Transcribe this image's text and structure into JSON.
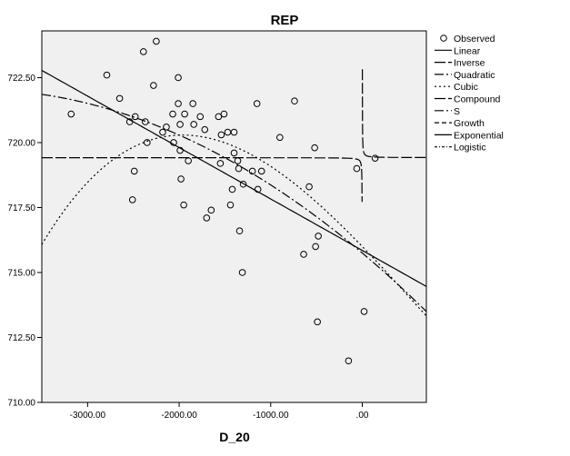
{
  "chart_data": {
    "type": "scatter",
    "title": "REP",
    "xlabel": "D_20",
    "ylabel": "",
    "xlim": [
      -3500,
      700
    ],
    "ylim": [
      710,
      724.3
    ],
    "grid": false,
    "background": "#f0f0f0",
    "legend_position": "right",
    "xticks": [
      {
        "value": -3000,
        "label": "-3000.00"
      },
      {
        "value": -2000,
        "label": "-2000.00"
      },
      {
        "value": -1000,
        "label": "-1000.00"
      },
      {
        "value": 0,
        "label": ".00"
      }
    ],
    "yticks": [
      {
        "value": 710,
        "label": "710.00"
      },
      {
        "value": 712.5,
        "label": "712.50"
      },
      {
        "value": 715,
        "label": "715.00"
      },
      {
        "value": 717.5,
        "label": "717.50"
      },
      {
        "value": 720,
        "label": "720.00"
      },
      {
        "value": 722.5,
        "label": "722.50"
      }
    ],
    "observed": [
      [
        -3180,
        721.1
      ],
      [
        -2790,
        722.6
      ],
      [
        -2650,
        721.7
      ],
      [
        -2540,
        720.8
      ],
      [
        -2510,
        717.8
      ],
      [
        -2490,
        718.9
      ],
      [
        -2480,
        721.0
      ],
      [
        -2390,
        723.5
      ],
      [
        -2370,
        720.8
      ],
      [
        -2350,
        720.0
      ],
      [
        -2280,
        722.2
      ],
      [
        -2250,
        723.9
      ],
      [
        -2180,
        720.4
      ],
      [
        -2140,
        720.6
      ],
      [
        -2070,
        721.1
      ],
      [
        -2060,
        720.0
      ],
      [
        -2010,
        722.5
      ],
      [
        -2010,
        721.5
      ],
      [
        -1990,
        720.7
      ],
      [
        -1990,
        719.7
      ],
      [
        -1980,
        718.6
      ],
      [
        -1950,
        717.6
      ],
      [
        -1940,
        721.1
      ],
      [
        -1900,
        719.3
      ],
      [
        -1850,
        721.5
      ],
      [
        -1840,
        720.7
      ],
      [
        -1770,
        721.0
      ],
      [
        -1720,
        720.5
      ],
      [
        -1700,
        717.1
      ],
      [
        -1650,
        717.4
      ],
      [
        -1570,
        721.0
      ],
      [
        -1550,
        719.2
      ],
      [
        -1540,
        720.3
      ],
      [
        -1510,
        721.1
      ],
      [
        -1470,
        720.4
      ],
      [
        -1440,
        717.6
      ],
      [
        -1420,
        718.2
      ],
      [
        -1400,
        720.4
      ],
      [
        -1400,
        719.6
      ],
      [
        -1360,
        719.3
      ],
      [
        -1350,
        719.0
      ],
      [
        -1340,
        716.6
      ],
      [
        -1310,
        715.0
      ],
      [
        -1300,
        718.4
      ],
      [
        -1200,
        718.9
      ],
      [
        -1150,
        721.5
      ],
      [
        -1140,
        718.2
      ],
      [
        -1100,
        718.9
      ],
      [
        -900,
        720.2
      ],
      [
        -740,
        721.6
      ],
      [
        -640,
        715.7
      ],
      [
        -580,
        718.3
      ],
      [
        -520,
        719.8
      ],
      [
        -510,
        716.0
      ],
      [
        -490,
        713.1
      ],
      [
        -480,
        716.4
      ],
      [
        -150,
        711.6
      ],
      [
        -60,
        719.0
      ],
      [
        20,
        713.5
      ],
      [
        140,
        719.4
      ]
    ],
    "series": [
      {
        "name": "Observed",
        "style": "marker"
      },
      {
        "name": "Linear",
        "style": "solid"
      },
      {
        "name": "Inverse",
        "style": "longdash"
      },
      {
        "name": "Quadratic",
        "style": "dashdot"
      },
      {
        "name": "Cubic",
        "style": "dotted"
      },
      {
        "name": "Compound",
        "style": "longdash"
      },
      {
        "name": "S",
        "style": "dashdot"
      },
      {
        "name": "Growth",
        "style": "dashed"
      },
      {
        "name": "Exponential",
        "style": "solid"
      },
      {
        "name": "Logistic",
        "style": "dotdash"
      }
    ],
    "curves": {
      "linear": {
        "intercept": 715.85,
        "slope": -0.00198
      },
      "inverse": {
        "b0": 719.42,
        "b1": 3.4
      },
      "quadratic": {
        "b0": 715.75,
        "b1": -0.00297,
        "b2": -3.5e-07
      },
      "cubic": {
        "b0": 716.0,
        "b1": -0.00365,
        "b2": -3.75e-07,
        "b3": 1.89e-10
      }
    }
  }
}
